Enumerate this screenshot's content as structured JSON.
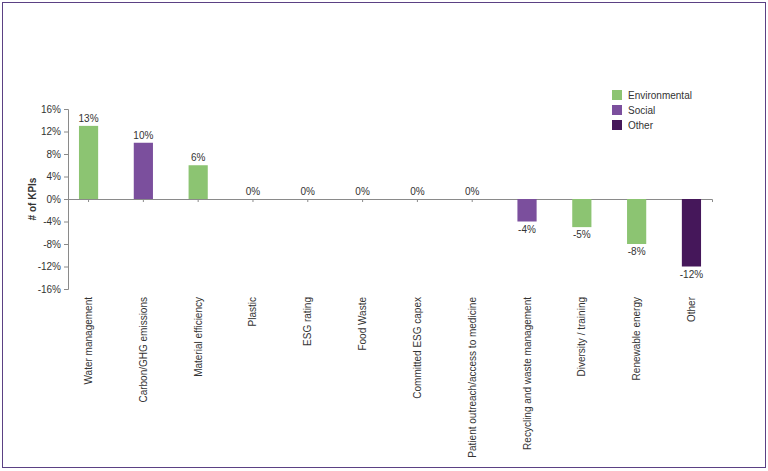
{
  "chart_data": {
    "type": "bar",
    "y_label": "# of KPIs",
    "categories": [
      "Water management",
      "Carbon/GHG emissions",
      "Material efficiency",
      "Plastic",
      "ESG rating",
      "Food Waste",
      "Committed ESG capex",
      "Patient outreach/access to medicine",
      "Recycling and waste management",
      "Diversity / training",
      "Renewable energy",
      "Other"
    ],
    "series": [
      {
        "name": "Environmental",
        "color": "#8cc472",
        "values": [
          13,
          null,
          6,
          0,
          0,
          0,
          0,
          0,
          null,
          -5,
          -8,
          null
        ],
        "value_labels": [
          "13%",
          null,
          "6%",
          "0%",
          "0%",
          "0%",
          "0%",
          "0%",
          null,
          "-5%",
          "-8%",
          null
        ]
      },
      {
        "name": "Social",
        "color": "#7b4f9d",
        "values": [
          null,
          10,
          null,
          null,
          null,
          null,
          null,
          null,
          -4,
          null,
          null,
          null
        ],
        "value_labels": [
          null,
          "10%",
          null,
          null,
          null,
          null,
          null,
          null,
          "-4%",
          null,
          null,
          null
        ]
      },
      {
        "name": "Other",
        "color": "#45175a",
        "values": [
          null,
          null,
          null,
          null,
          null,
          null,
          null,
          null,
          null,
          null,
          null,
          -12
        ],
        "value_labels": [
          null,
          null,
          null,
          null,
          null,
          null,
          null,
          null,
          null,
          null,
          null,
          "-12%"
        ]
      }
    ],
    "ylim": [
      -16,
      16
    ],
    "yticks": [
      {
        "value": 16,
        "label": "16%"
      },
      {
        "value": 12,
        "label": "12%"
      },
      {
        "value": 8,
        "label": "8%"
      },
      {
        "value": 4,
        "label": "4%"
      },
      {
        "value": 0,
        "label": "0%"
      },
      {
        "value": -4,
        "label": "-4%"
      },
      {
        "value": -8,
        "label": "-8%"
      },
      {
        "value": -12,
        "label": "-12%"
      },
      {
        "value": -16,
        "label": "-16%"
      }
    ],
    "grid": false,
    "legend": "top right",
    "data_labels": true
  }
}
